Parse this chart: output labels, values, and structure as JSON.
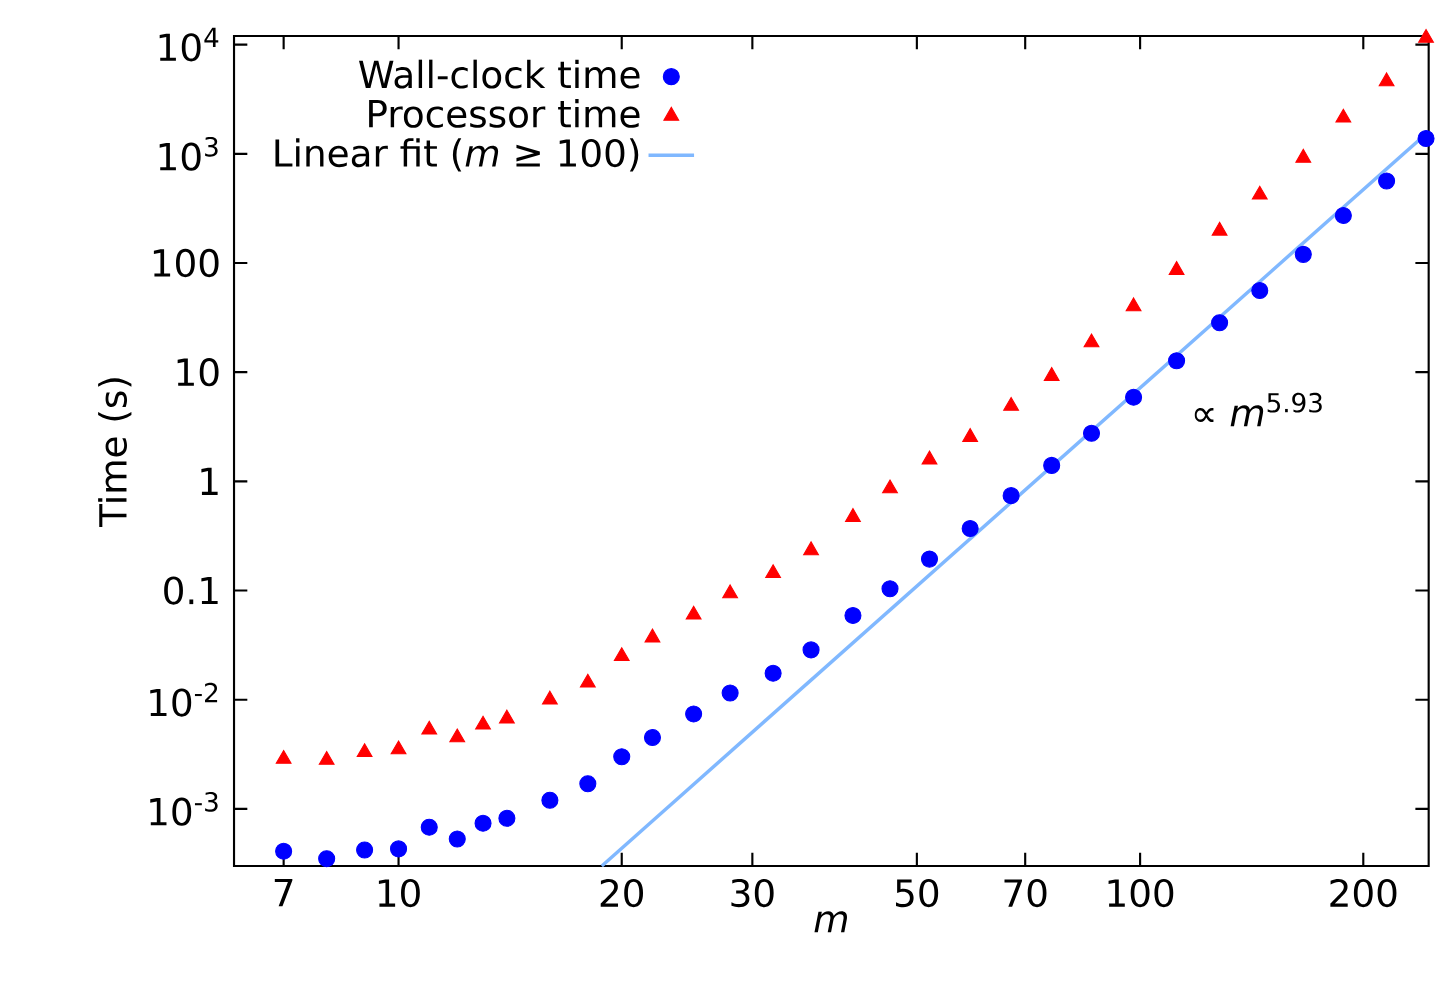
{
  "chart_data": {
    "type": "scatter",
    "xlabel": "m",
    "ylabel": "Time (s)",
    "log": "xy",
    "legend": "top left",
    "grid": false,
    "xlim": [
      6,
      245
    ],
    "ylim": [
      0.0003,
      12000
    ],
    "xticks": [
      7,
      10,
      20,
      30,
      50,
      70,
      100,
      200
    ],
    "yticks": [
      {
        "value": 0.001,
        "label": "10$^{-3}$"
      },
      {
        "value": 0.01,
        "label": "10$^{-2}$"
      },
      0.1,
      1,
      10,
      100,
      {
        "value": 1000,
        "label": "10$^{3}$"
      },
      {
        "value": 10000,
        "label": "10$^{4}$"
      }
    ],
    "annotations": [
      "∝ *m*$^{5.93}$"
    ],
    "x": [
      7,
      8,
      9,
      10,
      11,
      12,
      13,
      14,
      16,
      18,
      20,
      22,
      25,
      28,
      32,
      36,
      41,
      46,
      52,
      59,
      67,
      76,
      86,
      98,
      112,
      128,
      145,
      166,
      188,
      215,
      243
    ],
    "series": [
      {
        "name": "Wall-clock time",
        "color": "#0000ff",
        "marker": "circle",
        "values": [
          0.00041,
          0.00035,
          0.00042,
          0.00043,
          0.00068,
          0.00053,
          0.00074,
          0.00082,
          0.0012,
          0.0017,
          0.003,
          0.0045,
          0.0074,
          0.0115,
          0.0175,
          0.0286,
          0.059,
          0.104,
          0.194,
          0.37,
          0.74,
          1.4,
          2.76,
          5.9,
          12.7,
          28.4,
          56,
          120,
          272,
          563,
          1380
        ]
      },
      {
        "name": "Processor time",
        "color": "#ff0000",
        "marker": "triangle",
        "values": [
          0.00286,
          0.0028,
          0.0033,
          0.0035,
          0.0053,
          0.0045,
          0.0059,
          0.0067,
          0.01,
          0.0143,
          0.025,
          0.037,
          0.06,
          0.094,
          0.144,
          0.233,
          0.47,
          0.86,
          1.58,
          2.54,
          4.9,
          9.2,
          18.7,
          40,
          86,
          197,
          422,
          918,
          2140,
          4600,
          11500
        ]
      },
      {
        "name": "Linear fit (*m* ≥ 100)",
        "color": "#80b8ff",
        "type": "line",
        "marker": "none",
        "line_style": "solid",
        "x": [
          18.8,
          245
        ],
        "values": [
          0.0003,
          1600
        ]
      }
    ]
  }
}
